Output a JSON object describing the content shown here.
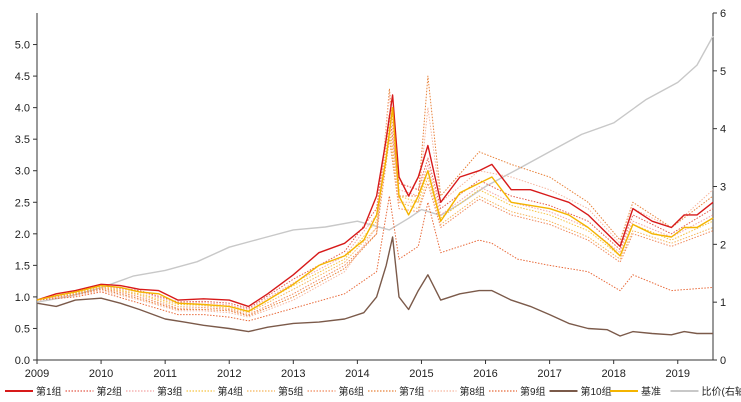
{
  "chart_data": {
    "type": "line",
    "title": "",
    "xlabel": "",
    "ylabel": "",
    "x_range": [
      2009.0,
      2019.55
    ],
    "x_ticks": [
      "2009",
      "2010",
      "2011",
      "2012",
      "2013",
      "2014",
      "2015",
      "2016",
      "2017",
      "2018",
      "2019"
    ],
    "y_left": {
      "range": [
        0,
        5.5
      ],
      "ticks": [
        "0.0",
        "0.5",
        "1.0",
        "1.5",
        "2.0",
        "2.5",
        "3.0",
        "3.5",
        "4.0",
        "4.5",
        "5.0"
      ]
    },
    "y_right": {
      "range": [
        0,
        6
      ],
      "ticks": [
        "0",
        "1",
        "2",
        "3",
        "4",
        "5",
        "6"
      ]
    },
    "grid": false,
    "legend_position": "bottom",
    "series": [
      {
        "name": "第1组",
        "axis": "left",
        "color": "#d71a1a",
        "style": "solid",
        "x": [
          2009.0,
          2009.3,
          2009.6,
          2010.0,
          2010.3,
          2010.6,
          2010.9,
          2011.2,
          2011.6,
          2012.0,
          2012.3,
          2012.6,
          2013.0,
          2013.4,
          2013.8,
          2014.1,
          2014.3,
          2014.45,
          2014.55,
          2014.65,
          2014.8,
          2014.95,
          2015.1,
          2015.3,
          2015.6,
          2015.9,
          2016.1,
          2016.4,
          2016.7,
          2017.0,
          2017.3,
          2017.6,
          2017.9,
          2018.1,
          2018.3,
          2018.6,
          2018.9,
          2019.1,
          2019.3,
          2019.55
        ],
        "y": [
          0.95,
          1.05,
          1.1,
          1.2,
          1.18,
          1.12,
          1.1,
          0.95,
          0.97,
          0.95,
          0.85,
          1.05,
          1.35,
          1.7,
          1.85,
          2.1,
          2.6,
          3.5,
          4.2,
          2.9,
          2.6,
          2.9,
          3.4,
          2.5,
          2.9,
          3.0,
          3.1,
          2.7,
          2.7,
          2.6,
          2.5,
          2.3,
          2.0,
          1.8,
          2.4,
          2.2,
          2.1,
          2.3,
          2.3,
          2.5
        ]
      },
      {
        "name": "第2组",
        "axis": "left",
        "color": "#e45a4a",
        "style": "dotted",
        "x": [
          2009.0,
          2009.6,
          2010.0,
          2010.6,
          2011.2,
          2011.6,
          2012.0,
          2012.3,
          2013.0,
          2013.8,
          2014.3,
          2014.5,
          2014.65,
          2014.95,
          2015.1,
          2015.3,
          2015.9,
          2016.4,
          2017.0,
          2017.6,
          2018.1,
          2018.3,
          2018.9,
          2019.55
        ],
        "y": [
          0.95,
          1.08,
          1.18,
          1.1,
          0.92,
          0.93,
          0.9,
          0.82,
          1.28,
          1.72,
          2.4,
          3.9,
          2.8,
          2.7,
          3.2,
          2.4,
          2.85,
          2.6,
          2.45,
          2.2,
          1.75,
          2.3,
          2.0,
          2.4
        ]
      },
      {
        "name": "第3组",
        "axis": "left",
        "color": "#f3a3a3",
        "style": "dotted",
        "x": [
          2009.0,
          2009.6,
          2010.0,
          2010.6,
          2011.2,
          2011.6,
          2012.0,
          2012.3,
          2013.0,
          2013.8,
          2014.3,
          2014.5,
          2014.65,
          2014.95,
          2015.1,
          2015.3,
          2015.9,
          2016.4,
          2017.0,
          2017.6,
          2018.1,
          2018.3,
          2018.9,
          2019.55
        ],
        "y": [
          0.95,
          1.07,
          1.17,
          1.08,
          0.9,
          0.91,
          0.87,
          0.8,
          1.22,
          1.65,
          2.3,
          3.8,
          2.7,
          2.6,
          3.1,
          2.3,
          2.75,
          2.5,
          2.35,
          2.1,
          1.7,
          2.2,
          1.95,
          2.3
        ]
      },
      {
        "name": "第4组",
        "axis": "left",
        "color": "#f6c342",
        "style": "dotted",
        "x": [
          2009.0,
          2009.6,
          2010.0,
          2010.6,
          2011.2,
          2011.6,
          2012.0,
          2012.3,
          2013.0,
          2013.8,
          2014.3,
          2014.5,
          2014.65,
          2014.95,
          2015.1,
          2015.3,
          2015.9,
          2016.4,
          2017.0,
          2017.6,
          2018.1,
          2018.3,
          2018.9,
          2019.55
        ],
        "y": [
          0.95,
          1.06,
          1.16,
          1.05,
          0.88,
          0.88,
          0.85,
          0.78,
          1.18,
          1.6,
          2.2,
          3.7,
          2.6,
          2.5,
          3.0,
          2.25,
          2.7,
          2.45,
          2.3,
          2.05,
          1.65,
          2.15,
          1.9,
          2.2
        ]
      },
      {
        "name": "第5组",
        "axis": "left",
        "color": "#f5b55a",
        "style": "dotted",
        "x": [
          2009.0,
          2009.6,
          2010.0,
          2010.6,
          2011.2,
          2011.6,
          2012.0,
          2012.3,
          2013.0,
          2013.8,
          2014.3,
          2014.5,
          2014.65,
          2014.95,
          2015.1,
          2015.3,
          2015.9,
          2016.4,
          2017.0,
          2017.6,
          2018.1,
          2018.3,
          2018.9,
          2019.55
        ],
        "y": [
          0.95,
          1.05,
          1.15,
          1.03,
          0.85,
          0.86,
          0.82,
          0.75,
          1.12,
          1.55,
          2.1,
          3.6,
          2.5,
          2.4,
          2.9,
          2.15,
          2.6,
          2.35,
          2.2,
          1.95,
          1.6,
          2.05,
          1.85,
          2.1
        ]
      },
      {
        "name": "第6组",
        "axis": "left",
        "color": "#f08a5d",
        "style": "dotted",
        "x": [
          2009.0,
          2009.6,
          2010.0,
          2010.6,
          2011.2,
          2011.6,
          2012.0,
          2012.3,
          2013.0,
          2013.8,
          2014.3,
          2014.5,
          2014.65,
          2014.95,
          2015.1,
          2015.3,
          2015.9,
          2016.4,
          2017.0,
          2017.6,
          2018.1,
          2018.3,
          2018.9,
          2019.55
        ],
        "y": [
          0.95,
          1.04,
          1.14,
          1.0,
          0.82,
          0.83,
          0.8,
          0.72,
          1.05,
          1.5,
          2.0,
          3.5,
          2.4,
          2.35,
          2.8,
          2.1,
          2.55,
          2.3,
          2.15,
          1.9,
          1.55,
          2.0,
          1.8,
          2.05
        ]
      },
      {
        "name": "第7组",
        "axis": "left",
        "color": "#e8823a",
        "style": "dotted",
        "x": [
          2009.0,
          2009.6,
          2010.0,
          2010.6,
          2011.2,
          2011.6,
          2012.0,
          2012.3,
          2013.0,
          2013.8,
          2014.3,
          2014.5,
          2014.65,
          2014.95,
          2015.1,
          2015.3,
          2015.9,
          2016.4,
          2017.0,
          2017.6,
          2018.1,
          2018.3,
          2018.9,
          2019.55
        ],
        "y": [
          0.95,
          1.03,
          1.12,
          0.97,
          0.8,
          0.8,
          0.78,
          0.7,
          1.0,
          1.45,
          2.0,
          4.3,
          2.6,
          2.6,
          4.5,
          2.6,
          3.3,
          3.1,
          2.9,
          2.5,
          1.9,
          2.5,
          2.1,
          2.6
        ]
      },
      {
        "name": "第8组",
        "axis": "left",
        "color": "#f7b7a0",
        "style": "dotted",
        "x": [
          2009.0,
          2009.6,
          2010.0,
          2010.6,
          2011.2,
          2011.6,
          2012.0,
          2012.3,
          2013.0,
          2013.8,
          2014.3,
          2014.5,
          2014.65,
          2014.95,
          2015.1,
          2015.3,
          2015.9,
          2016.4,
          2017.0,
          2017.6,
          2018.1,
          2018.3,
          2018.9,
          2019.55
        ],
        "y": [
          0.95,
          1.02,
          1.1,
          0.95,
          0.78,
          0.78,
          0.75,
          0.68,
          0.95,
          1.4,
          2.1,
          4.2,
          2.5,
          2.5,
          4.0,
          2.5,
          3.0,
          2.9,
          2.7,
          2.4,
          1.85,
          2.4,
          2.1,
          2.7
        ]
      },
      {
        "name": "第9组",
        "axis": "left",
        "color": "#e86a3a",
        "style": "dotted",
        "x": [
          2009.0,
          2009.6,
          2010.0,
          2010.6,
          2011.2,
          2011.6,
          2012.0,
          2012.3,
          2013.0,
          2013.8,
          2014.3,
          2014.5,
          2014.65,
          2014.95,
          2015.1,
          2015.3,
          2015.9,
          2016.1,
          2016.5,
          2017.0,
          2017.6,
          2018.1,
          2018.3,
          2018.9,
          2019.55
        ],
        "y": [
          0.95,
          1.0,
          1.08,
          0.9,
          0.72,
          0.72,
          0.68,
          0.62,
          0.82,
          1.05,
          1.4,
          2.6,
          1.6,
          1.8,
          2.5,
          1.7,
          1.9,
          1.85,
          1.6,
          1.5,
          1.4,
          1.1,
          1.35,
          1.1,
          1.15
        ]
      },
      {
        "name": "第10组",
        "axis": "left",
        "color": "#7b5a4a",
        "style": "solid",
        "x": [
          2009.0,
          2009.3,
          2009.6,
          2010.0,
          2010.3,
          2010.6,
          2011.0,
          2011.3,
          2011.6,
          2012.0,
          2012.3,
          2012.6,
          2013.0,
          2013.4,
          2013.8,
          2014.1,
          2014.3,
          2014.45,
          2014.55,
          2014.65,
          2014.8,
          2014.95,
          2015.1,
          2015.3,
          2015.6,
          2015.9,
          2016.1,
          2016.4,
          2016.7,
          2017.0,
          2017.3,
          2017.6,
          2017.9,
          2018.1,
          2018.3,
          2018.6,
          2018.9,
          2019.1,
          2019.3,
          2019.55
        ],
        "y": [
          0.9,
          0.85,
          0.95,
          0.98,
          0.9,
          0.8,
          0.65,
          0.6,
          0.55,
          0.5,
          0.45,
          0.52,
          0.58,
          0.6,
          0.65,
          0.75,
          1.0,
          1.5,
          1.95,
          1.0,
          0.8,
          1.1,
          1.35,
          0.95,
          1.05,
          1.1,
          1.1,
          0.95,
          0.85,
          0.72,
          0.58,
          0.5,
          0.48,
          0.38,
          0.45,
          0.42,
          0.4,
          0.45,
          0.42,
          0.42
        ]
      },
      {
        "name": "基准",
        "axis": "left",
        "color": "#f4b400",
        "style": "solid",
        "x": [
          2009.0,
          2009.3,
          2009.6,
          2010.0,
          2010.3,
          2010.6,
          2010.9,
          2011.2,
          2011.6,
          2012.0,
          2012.3,
          2012.6,
          2013.0,
          2013.4,
          2013.8,
          2014.1,
          2014.3,
          2014.45,
          2014.55,
          2014.65,
          2014.8,
          2014.95,
          2015.1,
          2015.3,
          2015.6,
          2015.9,
          2016.1,
          2016.4,
          2016.7,
          2017.0,
          2017.3,
          2017.6,
          2017.9,
          2018.1,
          2018.3,
          2018.6,
          2018.9,
          2019.1,
          2019.3,
          2019.55
        ],
        "y": [
          0.95,
          1.02,
          1.08,
          1.18,
          1.15,
          1.08,
          1.05,
          0.9,
          0.88,
          0.85,
          0.77,
          0.95,
          1.2,
          1.5,
          1.65,
          1.9,
          2.3,
          3.2,
          4.0,
          2.6,
          2.3,
          2.6,
          3.0,
          2.2,
          2.65,
          2.8,
          2.9,
          2.5,
          2.45,
          2.4,
          2.3,
          2.1,
          1.85,
          1.65,
          2.15,
          2.0,
          1.95,
          2.1,
          2.1,
          2.25
        ]
      },
      {
        "name": "比价(右轴",
        "axis": "right",
        "color": "#c8c8c8",
        "style": "solid",
        "x": [
          2009.0,
          2009.5,
          2010.0,
          2010.5,
          2011.0,
          2011.5,
          2012.0,
          2012.5,
          2013.0,
          2013.5,
          2014.0,
          2014.5,
          2014.8,
          2015.0,
          2015.3,
          2015.6,
          2016.0,
          2016.5,
          2017.0,
          2017.5,
          2018.0,
          2018.5,
          2019.0,
          2019.3,
          2019.55
        ],
        "y": [
          1.0,
          1.1,
          1.25,
          1.45,
          1.55,
          1.7,
          1.95,
          2.1,
          2.25,
          2.3,
          2.4,
          2.25,
          2.45,
          2.6,
          2.5,
          2.7,
          3.0,
          3.3,
          3.6,
          3.9,
          4.1,
          4.5,
          4.8,
          5.1,
          5.6
        ]
      }
    ]
  }
}
